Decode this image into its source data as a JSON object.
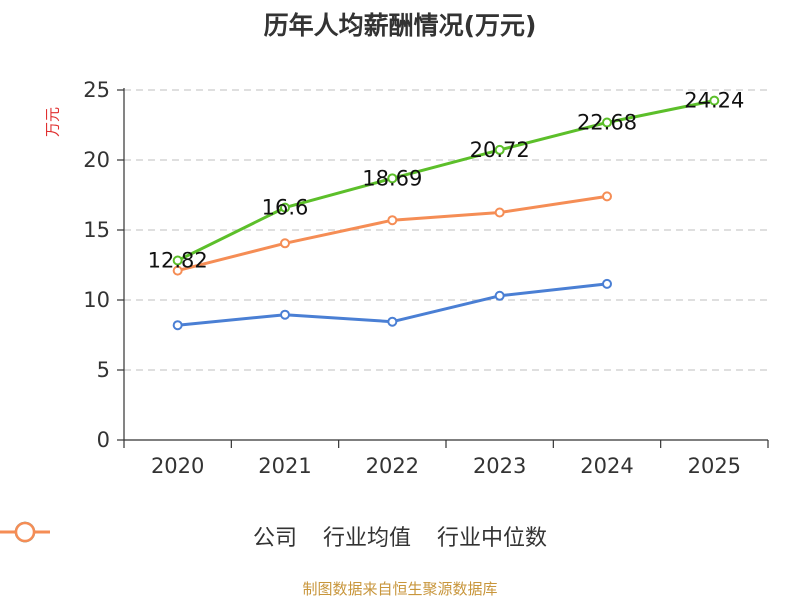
{
  "chart_data": {
    "type": "line",
    "title": "历年人均薪酬情况(万元)",
    "ylabel": "万元",
    "xlabel": "",
    "categories": [
      "2020",
      "2021",
      "2022",
      "2023",
      "2024",
      "2025"
    ],
    "ylim": [
      0,
      25
    ],
    "yticks": [
      "0",
      "5",
      "10",
      "15",
      "20",
      "25"
    ],
    "grid": true,
    "legend_position": "bottom",
    "series": [
      {
        "name": "公司",
        "color": "#5cbf2a",
        "values": [
          12.82,
          16.6,
          18.69,
          20.72,
          22.68,
          24.24
        ],
        "labels": [
          "12.82",
          "16.6",
          "18.69",
          "20.72",
          "22.68",
          "24.24"
        ]
      },
      {
        "name": "行业均值",
        "color": "#4a7fd4",
        "values": [
          8.2,
          8.95,
          8.45,
          10.3,
          11.15,
          null
        ],
        "labels": []
      },
      {
        "name": "行业中位数",
        "color": "#f58d55",
        "values": [
          12.1,
          14.05,
          15.7,
          16.25,
          17.4,
          null
        ],
        "labels": []
      }
    ]
  },
  "footer": "制图数据来自恒生聚源数据库"
}
